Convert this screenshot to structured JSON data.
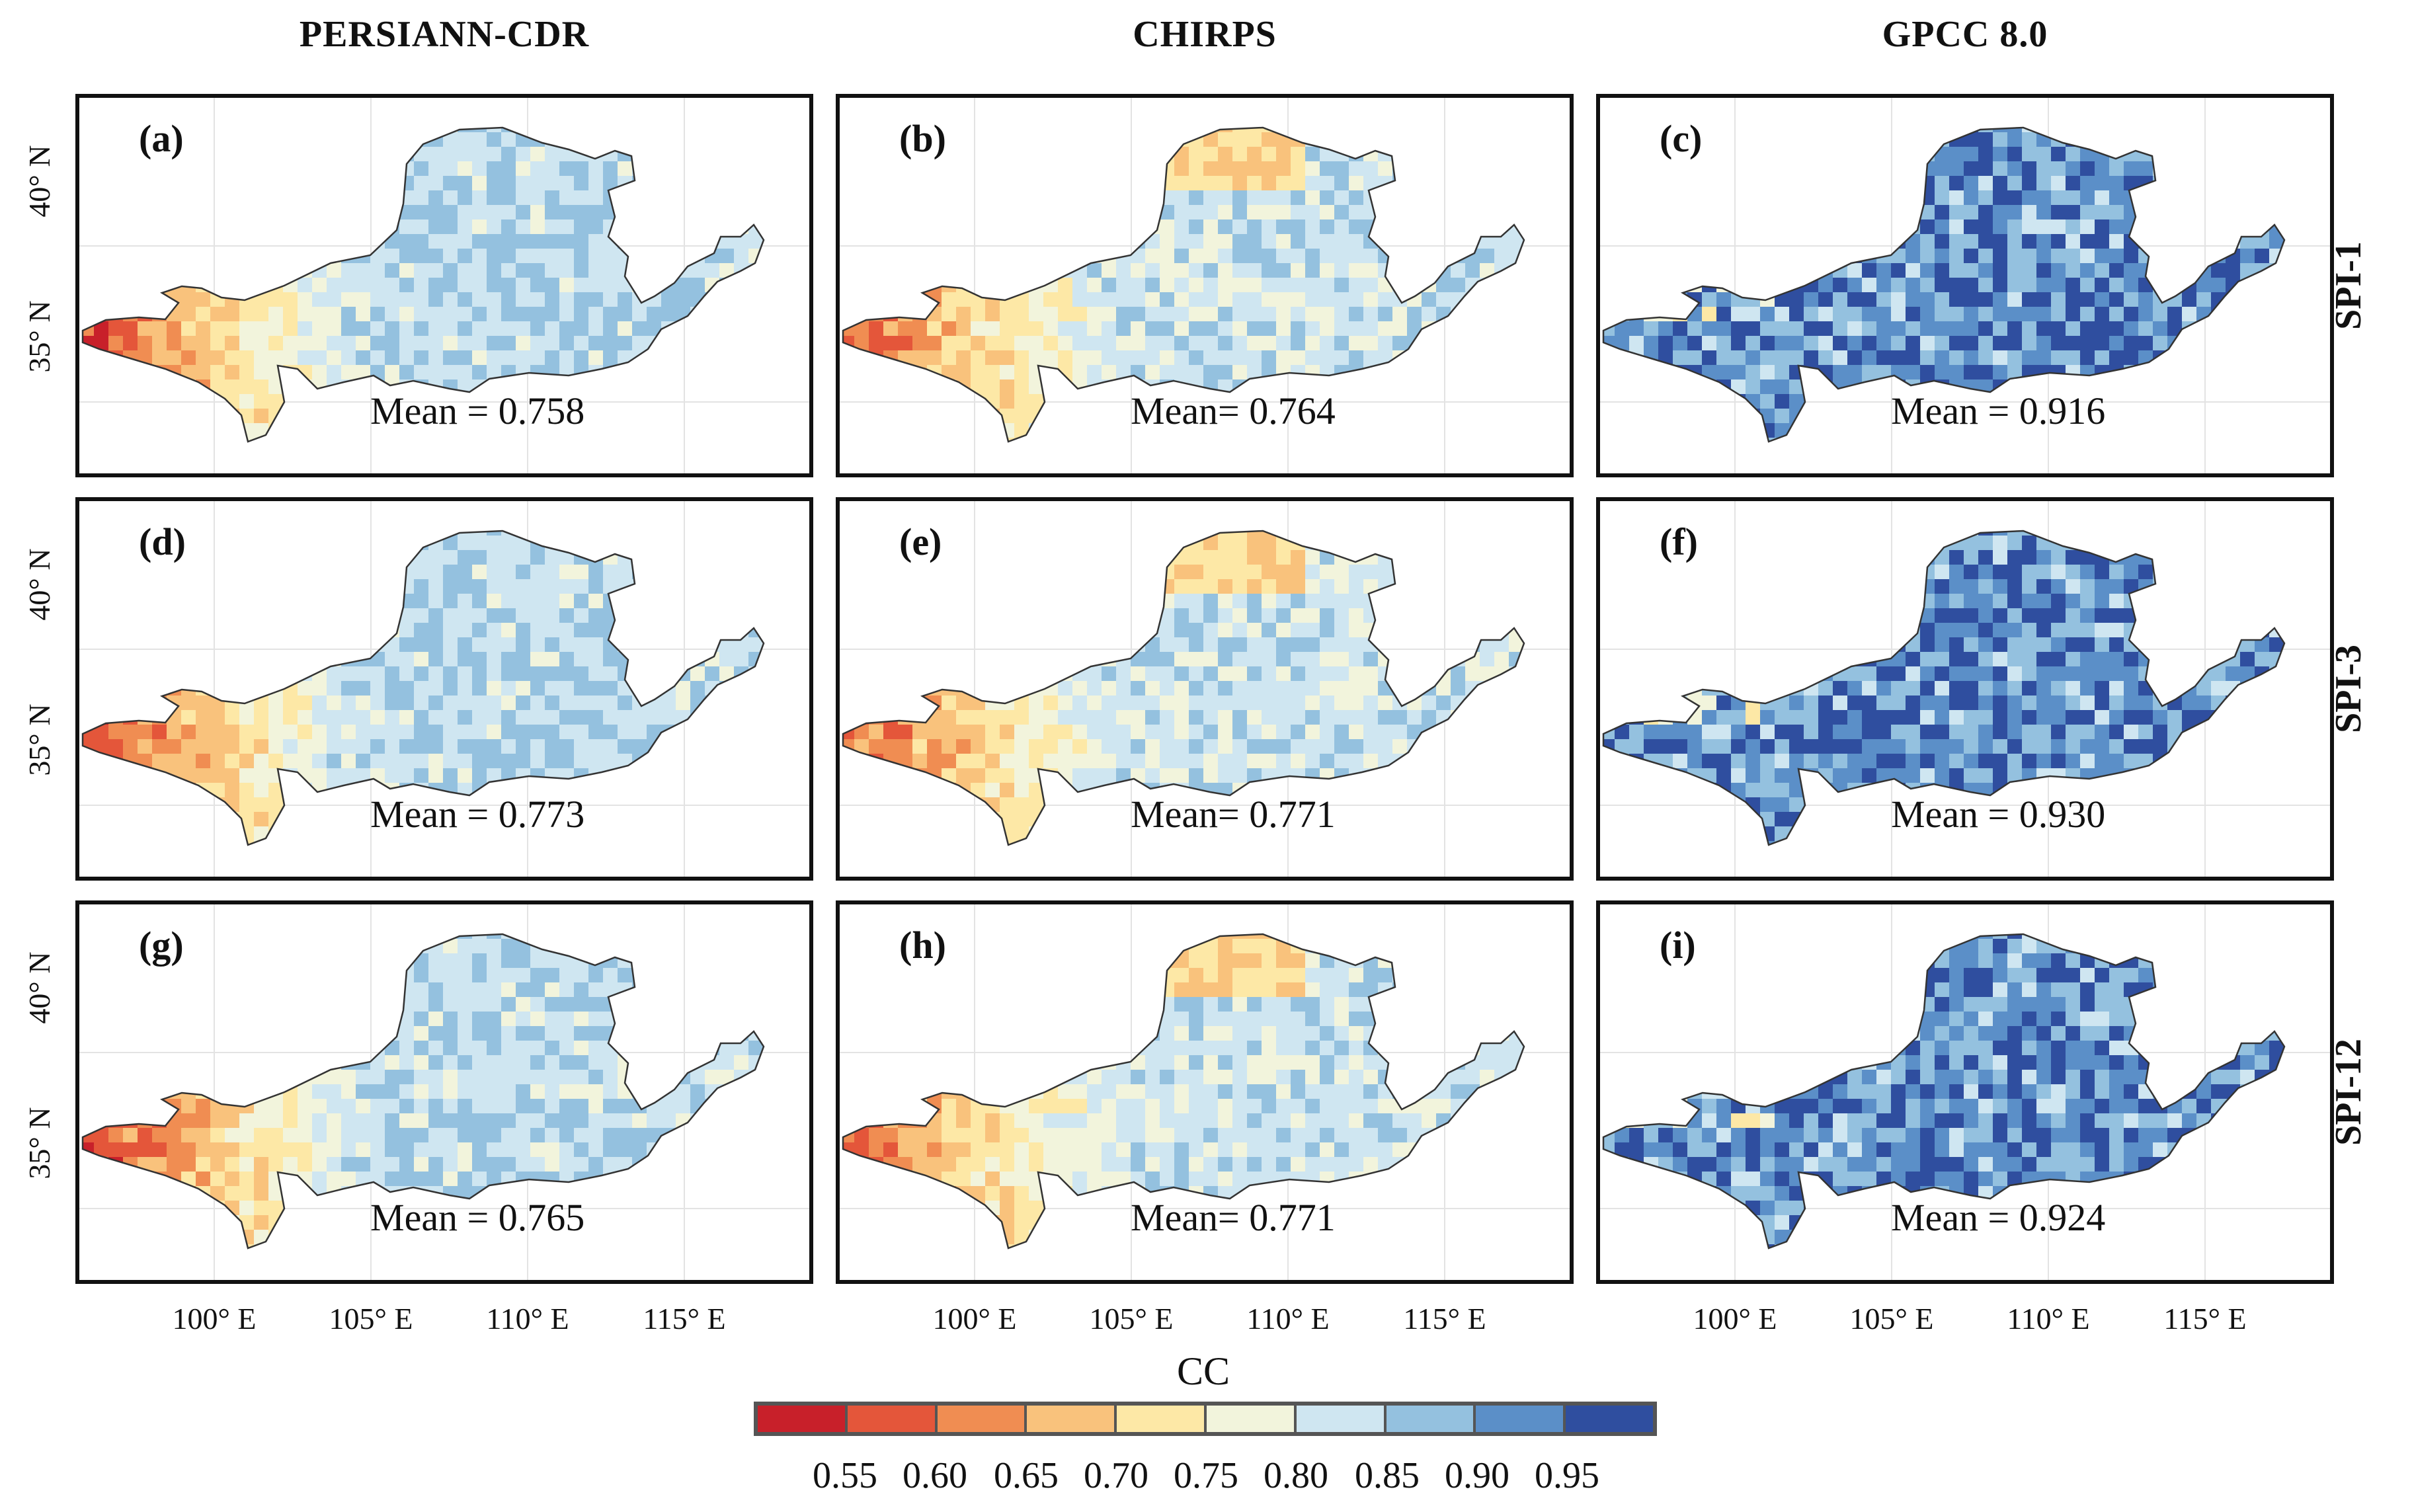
{
  "figure": {
    "columns": [
      "PERSIANN-CDR",
      "CHIRPS",
      "GPCC 8.0"
    ],
    "rows": [
      "SPI-1",
      "SPI-3",
      "SPI-12"
    ],
    "panels": [
      {
        "label": "(a)",
        "mean_text": "Mean = 0.758",
        "mean": 0.758,
        "product": "PERSIANN-CDR",
        "index": "SPI-1"
      },
      {
        "label": "(b)",
        "mean_text": "Mean= 0.764",
        "mean": 0.764,
        "product": "CHIRPS",
        "index": "SPI-1"
      },
      {
        "label": "(c)",
        "mean_text": "Mean = 0.916",
        "mean": 0.916,
        "product": "GPCC 8.0",
        "index": "SPI-1"
      },
      {
        "label": "(d)",
        "mean_text": "Mean = 0.773",
        "mean": 0.773,
        "product": "PERSIANN-CDR",
        "index": "SPI-3"
      },
      {
        "label": "(e)",
        "mean_text": "Mean= 0.771",
        "mean": 0.771,
        "product": "CHIRPS",
        "index": "SPI-3"
      },
      {
        "label": "(f)",
        "mean_text": "Mean = 0.930",
        "mean": 0.93,
        "product": "GPCC 8.0",
        "index": "SPI-3"
      },
      {
        "label": "(g)",
        "mean_text": "Mean = 0.765",
        "mean": 0.765,
        "product": "PERSIANN-CDR",
        "index": "SPI-12"
      },
      {
        "label": "(h)",
        "mean_text": "Mean= 0.771",
        "mean": 0.771,
        "product": "CHIRPS",
        "index": "SPI-12"
      },
      {
        "label": "(i)",
        "mean_text": "Mean = 0.924",
        "mean": 0.924,
        "product": "GPCC 8.0",
        "index": "SPI-12"
      }
    ],
    "lat_labels": [
      "40° N",
      "35° N"
    ],
    "lon_labels": [
      "100° E",
      "105° E",
      "110° E",
      "115° E"
    ],
    "legend": {
      "title": "CC",
      "ticks": [
        "0.55",
        "0.60",
        "0.65",
        "0.70",
        "0.75",
        "0.80",
        "0.85",
        "0.90",
        "0.95"
      ],
      "colors": [
        "#c8202a",
        "#e4563a",
        "#f08d52",
        "#f9c27c",
        "#fde8a6",
        "#f2f4dc",
        "#cfe6f1",
        "#94c1df",
        "#5b8fc8",
        "#2f4e9f"
      ]
    }
  }
}
